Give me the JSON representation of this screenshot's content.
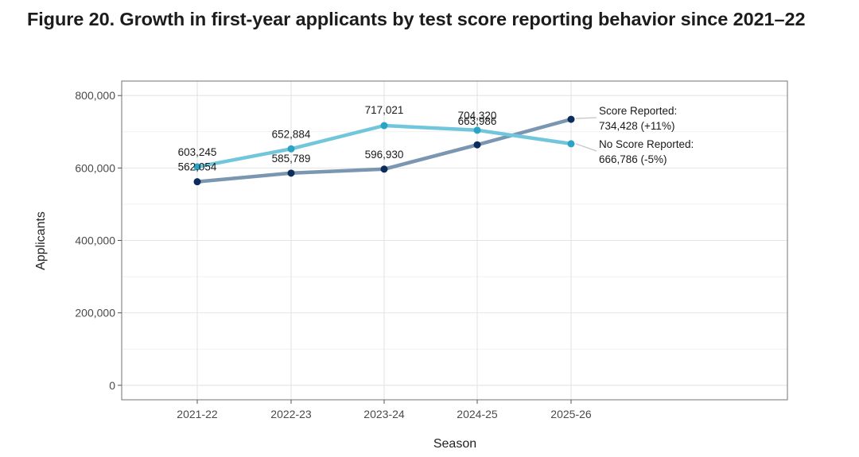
{
  "page_title": "Figure 20. Growth in first-year applicants by test score reporting behavior since 2021–22",
  "chart_data": {
    "type": "line",
    "title": "Figure 20. Growth in first-year applicants by test score reporting behavior since 2021–22",
    "xlabel": "Season",
    "ylabel": "Applicants",
    "categories": [
      "2021-22",
      "2022-23",
      "2023-24",
      "2024-25",
      "2025-26"
    ],
    "ylim": [
      -40000,
      840000
    ],
    "y_ticks": [
      0,
      200000,
      400000,
      600000,
      800000
    ],
    "y_tick_labels": [
      "0",
      "200,000",
      "400,000",
      "600,000",
      "800,000"
    ],
    "grid": true,
    "series": [
      {
        "name": "No Score Reported",
        "values": [
          603245,
          652884,
          717021,
          704320,
          666786
        ],
        "value_labels": [
          "603,245",
          "652,884",
          "717,021",
          "704,320",
          ""
        ],
        "line_color": "#72c6dc",
        "point_color": "#2aa3c4",
        "end_label_name": "No Score Reported:",
        "end_label_value": "666,786 (-5%)"
      },
      {
        "name": "Score Reported",
        "values": [
          562054,
          585789,
          596930,
          663986,
          734428
        ],
        "value_labels": [
          "562,054",
          "585,789",
          "596,930",
          "663,986",
          ""
        ],
        "line_color": "#7b96b0",
        "point_color": "#0c2c5c",
        "end_label_name": "Score Reported:",
        "end_label_value": "734,428 (+11%)"
      }
    ]
  }
}
